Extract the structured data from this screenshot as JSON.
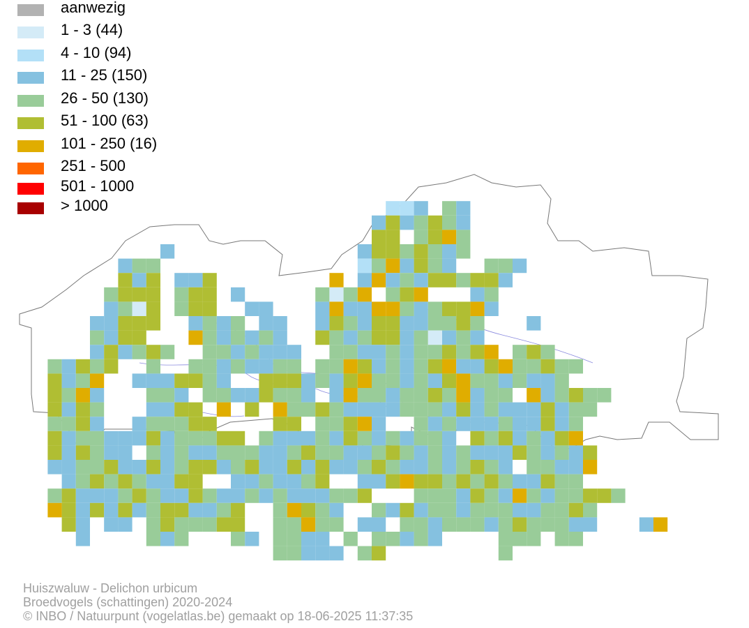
{
  "legend": [
    {
      "label": "aanwezig",
      "color": "#b2b2b2"
    },
    {
      "label": "1 - 3 (44)",
      "color": "#d4ebf7"
    },
    {
      "label": "4 - 10 (94)",
      "color": "#b3e0f7"
    },
    {
      "label": "11 - 25 (150)",
      "color": "#85c1e0"
    },
    {
      "label": "26 - 50 (130)",
      "color": "#99cc99"
    },
    {
      "label": "51 - 100 (63)",
      "color": "#b0be33"
    },
    {
      "label": "101 - 250 (16)",
      "color": "#e0ad00"
    },
    {
      "label": "251 - 500",
      "color": "#ff6600"
    },
    {
      "label": "501 - 1000",
      "color": "#ff0000"
    },
    {
      "label": "> 1000",
      "color": "#a80000"
    }
  ],
  "footer": {
    "species": "Huiszwaluw - Delichon urbicum",
    "dataset": "Broedvogels (schattingen) 2020-2024",
    "credit": "© INBO / Natuurpunt (vogelatlas.be) gemaakt op 18-06-2025 11:37:35"
  }
}
